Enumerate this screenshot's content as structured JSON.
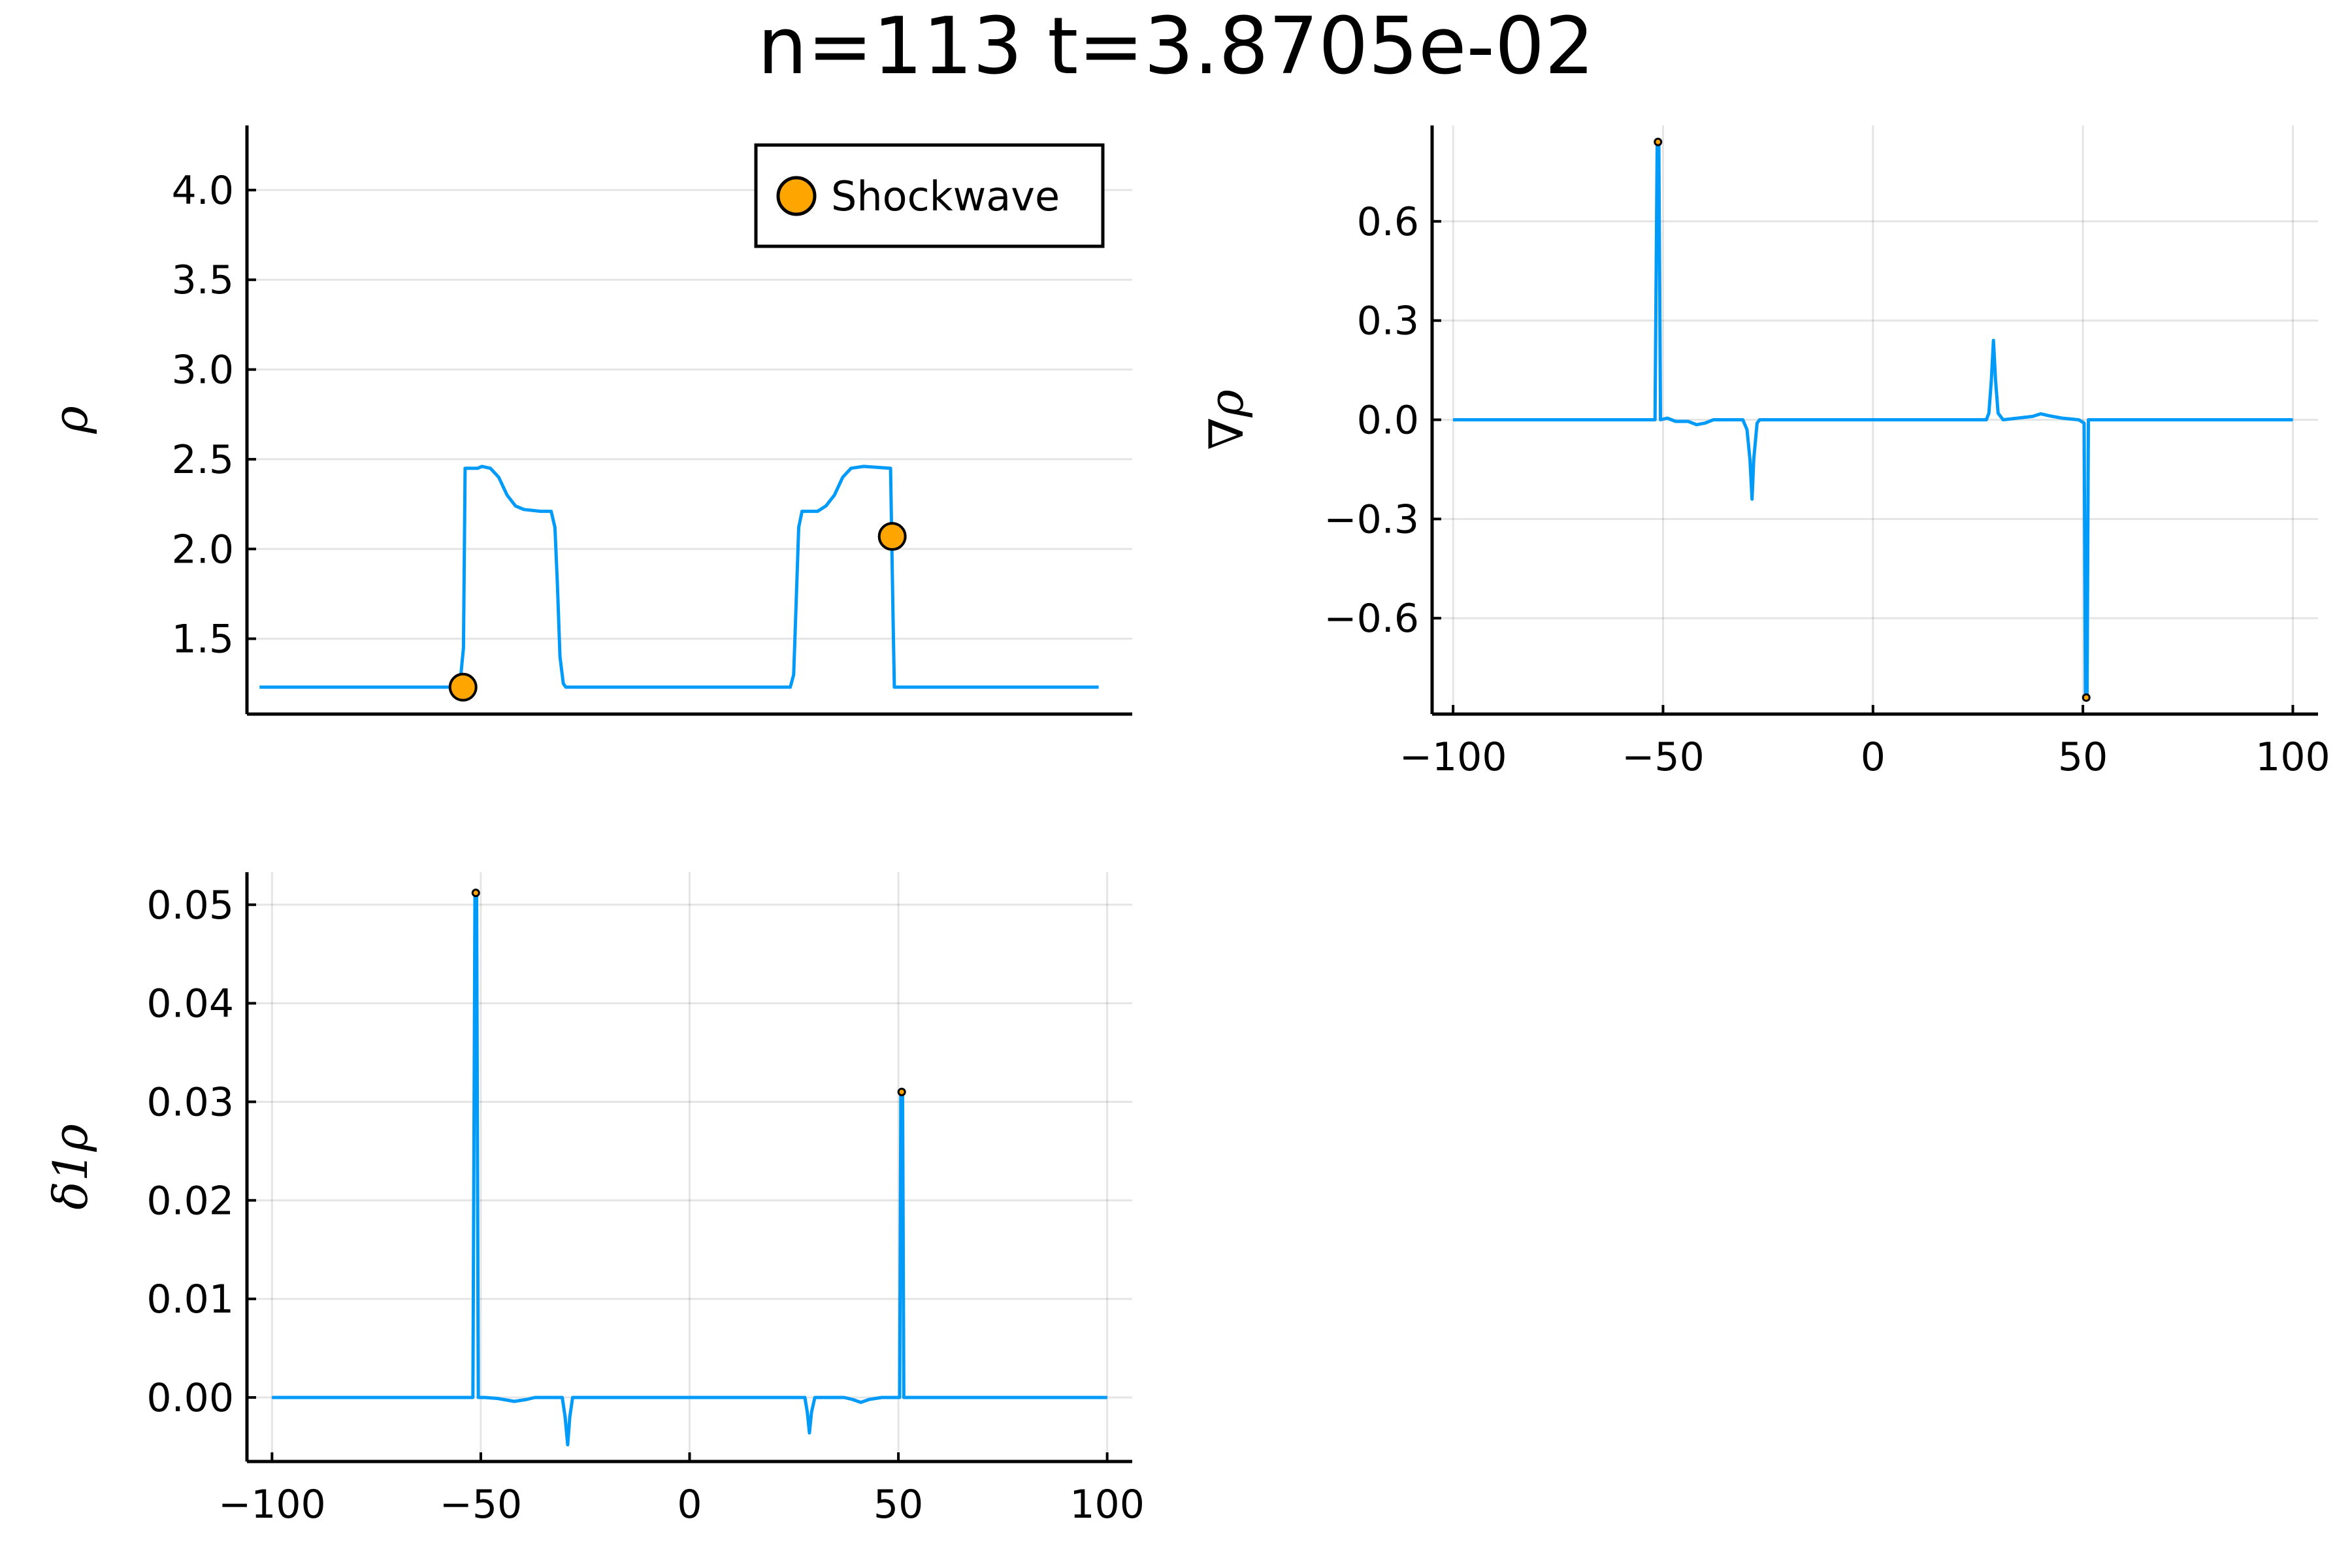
{
  "title": "n=113 t=3.8705e-02",
  "colors": {
    "series": "#009af9",
    "marker": "#ffa500",
    "grid": "#e6e6e6"
  },
  "chart_data": [
    {
      "type": "line",
      "ylabel": "ρ",
      "xlim": [
        -103,
        108
      ],
      "ylim": [
        1.08,
        4.36
      ],
      "xticks": [],
      "xticklabels": [],
      "yticks": [
        1.5,
        2.0,
        2.5,
        3.0,
        3.5,
        4.0
      ],
      "yticklabels": [
        "1.5",
        "2.0",
        "2.5",
        "3.0",
        "3.5",
        "4.0"
      ],
      "grid": true,
      "legend": {
        "placement": "top-right",
        "entries": [
          "Shockwave"
        ]
      },
      "series": [
        {
          "points": [
            [
              -100,
              1.23
            ],
            [
              -52.3,
              1.23
            ],
            [
              -51.4,
              1.45
            ],
            [
              -51.0,
              2.45
            ],
            [
              -48,
              2.45
            ],
            [
              -47,
              2.46
            ],
            [
              -45,
              2.45
            ],
            [
              -43,
              2.4
            ],
            [
              -41,
              2.3
            ],
            [
              -39,
              2.24
            ],
            [
              -37,
              2.22
            ],
            [
              -33,
              2.21
            ],
            [
              -30.5,
              2.21
            ],
            [
              -29.6,
              2.12
            ],
            [
              -29,
              1.8
            ],
            [
              -28.4,
              1.4
            ],
            [
              -27.6,
              1.25
            ],
            [
              -27,
              1.23
            ],
            [
              26.5,
              1.23
            ],
            [
              27.3,
              1.3
            ],
            [
              27.9,
              1.7
            ],
            [
              28.5,
              2.12
            ],
            [
              29.3,
              2.21
            ],
            [
              33,
              2.21
            ],
            [
              35,
              2.24
            ],
            [
              37,
              2.3
            ],
            [
              39,
              2.4
            ],
            [
              41,
              2.45
            ],
            [
              44,
              2.46
            ],
            [
              50.4,
              2.45
            ],
            [
              51.0,
              1.6
            ],
            [
              51.3,
              1.23
            ],
            [
              100,
              1.23
            ]
          ]
        }
      ],
      "markers": [
        [
          -51.5,
          1.23
        ],
        [
          50.8,
          2.07
        ]
      ]
    },
    {
      "type": "line",
      "ylabel": "∇ρ",
      "xlim": [
        -105,
        106
      ],
      "ylim": [
        -0.89,
        0.89
      ],
      "xticks": [
        -100,
        -50,
        0,
        50,
        100
      ],
      "xticklabels": [
        "−100",
        "−50",
        "0",
        "50",
        "100"
      ],
      "yticks": [
        -0.6,
        -0.3,
        0.0,
        0.3,
        0.6
      ],
      "yticklabels": [
        "−0.6",
        "−0.3",
        "0.0",
        "0.3",
        "0.6"
      ],
      "grid": true,
      "series": [
        {
          "points": [
            [
              -100,
              0
            ],
            [
              -51.9,
              0
            ],
            [
              -51.4,
              0.84
            ],
            [
              -51.0,
              0.84
            ],
            [
              -50.6,
              0
            ],
            [
              -49,
              0.005
            ],
            [
              -47,
              -0.005
            ],
            [
              -44,
              -0.005
            ],
            [
              -42,
              -0.015
            ],
            [
              -40,
              -0.01
            ],
            [
              -38,
              0
            ],
            [
              -31,
              0
            ],
            [
              -30,
              -0.03
            ],
            [
              -29.3,
              -0.12
            ],
            [
              -28.8,
              -0.24
            ],
            [
              -28.4,
              -0.12
            ],
            [
              -27.6,
              -0.01
            ],
            [
              -27,
              0
            ],
            [
              27,
              0
            ],
            [
              27.6,
              0.02
            ],
            [
              28.2,
              0.12
            ],
            [
              28.7,
              0.24
            ],
            [
              29.2,
              0.12
            ],
            [
              29.8,
              0.02
            ],
            [
              31,
              0
            ],
            [
              38,
              0.01
            ],
            [
              40,
              0.018
            ],
            [
              42,
              0.012
            ],
            [
              45,
              0.005
            ],
            [
              49,
              0
            ],
            [
              50.3,
              -0.01
            ],
            [
              50.6,
              -0.84
            ],
            [
              51.0,
              -0.84
            ],
            [
              51.3,
              0
            ],
            [
              100,
              0
            ]
          ]
        }
      ],
      "markers": [
        [
          -51.2,
          0.84
        ],
        [
          50.8,
          -0.84
        ]
      ]
    },
    {
      "type": "line",
      "ylabel": "δ1ρ",
      "xlim": [
        -106,
        106
      ],
      "ylim": [
        -0.0065,
        0.0533
      ],
      "xticks": [
        -100,
        -50,
        0,
        50,
        100
      ],
      "xticklabels": [
        "−100",
        "−50",
        "0",
        "50",
        "100"
      ],
      "yticks": [
        0.0,
        0.01,
        0.02,
        0.03,
        0.04,
        0.05
      ],
      "yticklabels": [
        "0.00",
        "0.01",
        "0.02",
        "0.03",
        "0.04",
        "0.05"
      ],
      "grid": true,
      "series": [
        {
          "points": [
            [
              -100,
              0
            ],
            [
              -51.9,
              0
            ],
            [
              -51.4,
              0.0512
            ],
            [
              -51.0,
              0.0512
            ],
            [
              -50.6,
              0
            ],
            [
              -49,
              0
            ],
            [
              -46,
              -0.0001
            ],
            [
              -42,
              -0.0004
            ],
            [
              -39,
              -0.0002
            ],
            [
              -37,
              0
            ],
            [
              -30.5,
              0
            ],
            [
              -29.8,
              -0.002
            ],
            [
              -29.2,
              -0.0048
            ],
            [
              -28.7,
              -0.002
            ],
            [
              -28,
              0
            ],
            [
              27.6,
              0
            ],
            [
              28.2,
              -0.0015
            ],
            [
              28.7,
              -0.0036
            ],
            [
              29.2,
              -0.0015
            ],
            [
              30,
              0
            ],
            [
              37,
              0
            ],
            [
              39,
              -0.0002
            ],
            [
              41,
              -0.0005
            ],
            [
              43,
              -0.0002
            ],
            [
              46,
              0
            ],
            [
              50.3,
              0
            ],
            [
              50.6,
              0.031
            ],
            [
              51.0,
              0.031
            ],
            [
              51.3,
              0
            ],
            [
              100,
              0
            ]
          ]
        }
      ],
      "markers": [
        [
          -51.2,
          0.0512
        ],
        [
          50.8,
          0.031
        ]
      ]
    }
  ]
}
